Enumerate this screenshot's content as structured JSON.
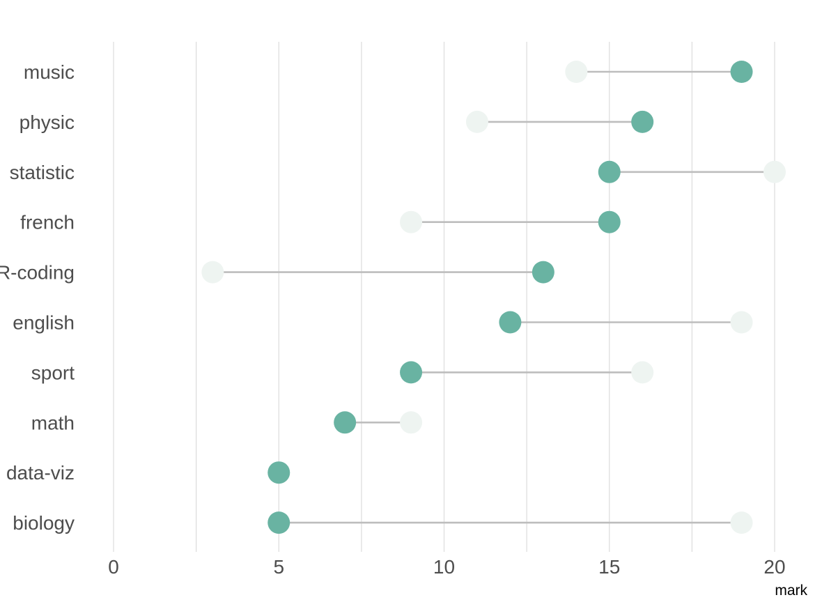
{
  "chart_data": {
    "type": "dumbbell",
    "title": "",
    "xlabel": "mark",
    "ylabel": "",
    "xlim": [
      0,
      20
    ],
    "x_ticks": [
      0,
      5,
      10,
      15,
      20
    ],
    "grid": "vertical",
    "legend": "none",
    "categories": [
      "music",
      "physic",
      "statistic",
      "french",
      "R-coding",
      "english",
      "sport",
      "math",
      "data-viz",
      "biology"
    ],
    "series": [
      {
        "values": [
          19,
          16,
          15,
          15,
          13,
          12,
          9,
          7,
          5,
          5
        ]
      },
      {
        "values": [
          14,
          11,
          20,
          9,
          3,
          19,
          16,
          9,
          5,
          19
        ]
      }
    ],
    "colors": {
      "primary_point": "#69b3a2",
      "secondary_point": "#eef4f1",
      "segment": "#bdbdbd",
      "grid": "#dcdcdc"
    }
  }
}
